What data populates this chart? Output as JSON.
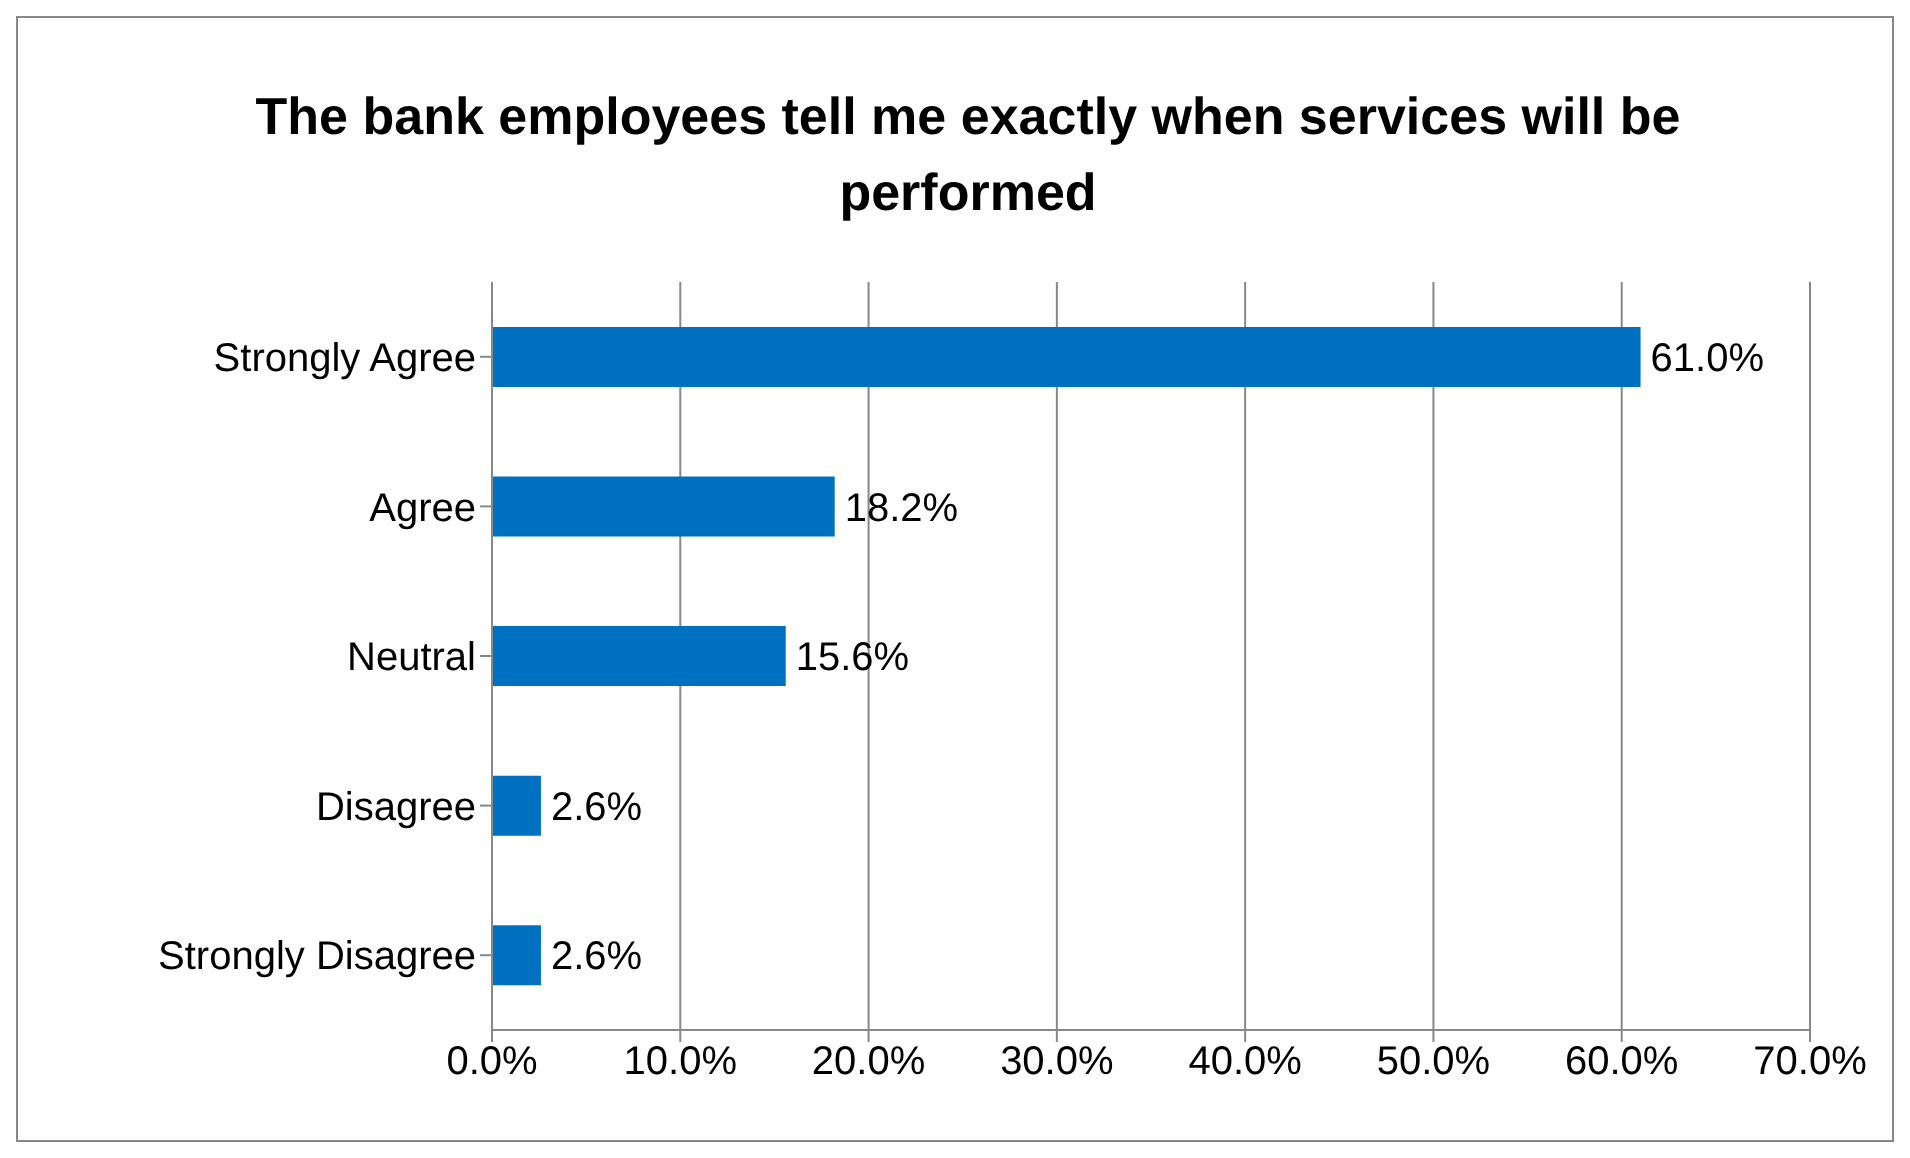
{
  "chart_data": {
    "type": "bar",
    "orientation": "horizontal",
    "title": "The bank employees tell me exactly when services will be performed",
    "categories": [
      "Strongly Agree",
      "Agree",
      "Neutral",
      "Disagree",
      "Strongly Disagree"
    ],
    "values": [
      61.0,
      18.2,
      15.6,
      2.6,
      2.6
    ],
    "value_labels": [
      "61.0%",
      "18.2%",
      "15.6%",
      "2.6%",
      "2.6%"
    ],
    "color": "#0070c0",
    "xlim": [
      0,
      70
    ],
    "xticks": [
      {
        "value": 0,
        "label": "0.0%"
      },
      {
        "value": 10,
        "label": "10.0%"
      },
      {
        "value": 20,
        "label": "20.0%"
      },
      {
        "value": 30,
        "label": "30.0%"
      },
      {
        "value": 40,
        "label": "40.0%"
      },
      {
        "value": 50,
        "label": "50.0%"
      },
      {
        "value": 60,
        "label": "60.0%"
      },
      {
        "value": 70,
        "label": "70.0%"
      }
    ],
    "grid": "x",
    "legend": false
  }
}
